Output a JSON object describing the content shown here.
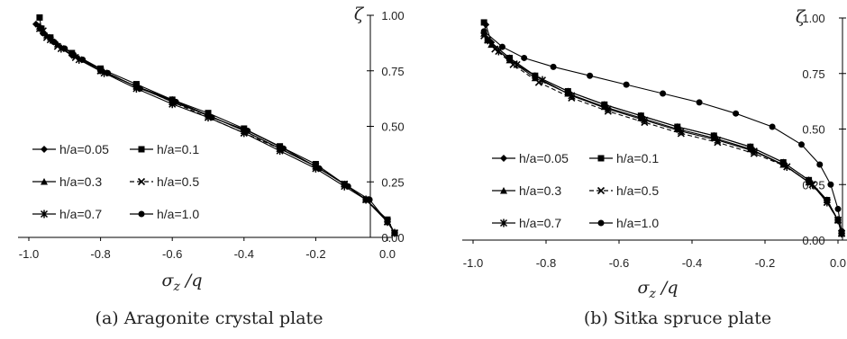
{
  "chart_data": [
    {
      "type": "line",
      "caption": "(a)  Aragonite  crystal  plate",
      "xlabel": "σ_z /q",
      "ylabel": "ζ",
      "xlim": [
        -1.0,
        0.02
      ],
      "ylim": [
        0.0,
        1.0
      ],
      "x_ticks": [
        "-1.0",
        "-0.8",
        "-0.6",
        "-0.4",
        "-0.2",
        "0.0"
      ],
      "y_ticks": [
        "0.00",
        "0.25",
        "0.50",
        "0.75",
        "1.00"
      ],
      "legend": "bottom-left, 2 columns",
      "series": [
        {
          "name": "h/a=0.05",
          "marker": "diamond",
          "x": [
            -0.98,
            -0.96,
            -0.93,
            -0.88,
            -0.8,
            -0.7,
            -0.6,
            -0.5,
            -0.4,
            -0.3,
            -0.2,
            -0.12,
            -0.06,
            0.0,
            0.02
          ],
          "y": [
            0.96,
            0.92,
            0.88,
            0.82,
            0.75,
            0.68,
            0.62,
            0.55,
            0.48,
            0.4,
            0.32,
            0.24,
            0.17,
            0.07,
            0.02
          ]
        },
        {
          "name": "h/a=0.1",
          "marker": "square",
          "x": [
            -0.97,
            -0.965,
            -0.94,
            -0.88,
            -0.8,
            -0.7,
            -0.6,
            -0.5,
            -0.4,
            -0.3,
            -0.2,
            -0.12,
            -0.06,
            0.0,
            0.02
          ],
          "y": [
            0.99,
            0.94,
            0.9,
            0.83,
            0.76,
            0.69,
            0.62,
            0.56,
            0.49,
            0.41,
            0.33,
            0.24,
            0.17,
            0.08,
            0.02
          ]
        },
        {
          "name": "h/a=0.3",
          "marker": "triangle",
          "x": [
            -0.97,
            -0.95,
            -0.92,
            -0.87,
            -0.8,
            -0.7,
            -0.6,
            -0.5,
            -0.4,
            -0.3,
            -0.2,
            -0.12,
            -0.06,
            0.0,
            0.02
          ],
          "y": [
            0.95,
            0.91,
            0.87,
            0.82,
            0.75,
            0.68,
            0.61,
            0.55,
            0.48,
            0.4,
            0.32,
            0.24,
            0.17,
            0.07,
            0.02
          ]
        },
        {
          "name": "h/a=0.5",
          "marker": "x",
          "x": [
            -0.97,
            -0.95,
            -0.92,
            -0.87,
            -0.8,
            -0.7,
            -0.6,
            -0.5,
            -0.4,
            -0.3,
            -0.2,
            -0.12,
            -0.06,
            0.0,
            0.02
          ],
          "y": [
            0.94,
            0.9,
            0.86,
            0.81,
            0.75,
            0.68,
            0.61,
            0.54,
            0.47,
            0.4,
            0.32,
            0.24,
            0.17,
            0.07,
            0.02
          ]
        },
        {
          "name": "h/a=0.7",
          "marker": "star",
          "x": [
            -0.96,
            -0.94,
            -0.91,
            -0.86,
            -0.79,
            -0.7,
            -0.6,
            -0.5,
            -0.4,
            -0.3,
            -0.2,
            -0.12,
            -0.06,
            0.0,
            0.02
          ],
          "y": [
            0.93,
            0.89,
            0.85,
            0.8,
            0.74,
            0.67,
            0.6,
            0.54,
            0.47,
            0.39,
            0.31,
            0.23,
            0.17,
            0.07,
            0.02
          ]
        },
        {
          "name": "h/a=1.0",
          "marker": "circle",
          "x": [
            -0.96,
            -0.93,
            -0.9,
            -0.85,
            -0.78,
            -0.69,
            -0.59,
            -0.49,
            -0.39,
            -0.29,
            -0.19,
            -0.11,
            -0.05,
            0.0,
            0.02
          ],
          "y": [
            0.92,
            0.88,
            0.85,
            0.8,
            0.74,
            0.67,
            0.61,
            0.54,
            0.48,
            0.4,
            0.31,
            0.23,
            0.17,
            0.07,
            0.02
          ]
        }
      ]
    },
    {
      "type": "line",
      "caption": "(b)  Sitka  spruce  plate",
      "xlabel": "σ_z /q",
      "ylabel": "ζ",
      "xlim": [
        -1.0,
        0.02
      ],
      "ylim": [
        0.0,
        1.0
      ],
      "x_ticks": [
        "-1.0",
        "-0.8",
        "-0.6",
        "-0.4",
        "-0.2",
        "0.0"
      ],
      "y_ticks": [
        "0.00",
        "0.25",
        "0.50",
        "0.75",
        "1.00"
      ],
      "legend": "bottom-left, 2 columns",
      "series": [
        {
          "name": "h/a=0.05",
          "marker": "diamond",
          "x": [
            -0.965,
            -0.95,
            -0.9,
            -0.83,
            -0.74,
            -0.64,
            -0.54,
            -0.44,
            -0.34,
            -0.24,
            -0.15,
            -0.08,
            -0.03,
            0.0,
            0.01
          ],
          "y": [
            0.97,
            0.89,
            0.82,
            0.74,
            0.67,
            0.61,
            0.56,
            0.51,
            0.47,
            0.42,
            0.35,
            0.27,
            0.18,
            0.09,
            0.03
          ]
        },
        {
          "name": "h/a=0.1",
          "marker": "square",
          "x": [
            -0.97,
            -0.96,
            -0.9,
            -0.83,
            -0.74,
            -0.64,
            -0.54,
            -0.44,
            -0.34,
            -0.24,
            -0.15,
            -0.08,
            -0.03,
            0.0,
            0.01
          ],
          "y": [
            0.98,
            0.9,
            0.82,
            0.74,
            0.67,
            0.61,
            0.56,
            0.51,
            0.47,
            0.42,
            0.35,
            0.27,
            0.18,
            0.09,
            0.03
          ]
        },
        {
          "name": "h/a=0.3",
          "marker": "triangle",
          "x": [
            -0.97,
            -0.95,
            -0.9,
            -0.83,
            -0.74,
            -0.64,
            -0.54,
            -0.44,
            -0.34,
            -0.24,
            -0.15,
            -0.08,
            -0.03,
            0.0,
            0.01
          ],
          "y": [
            0.93,
            0.88,
            0.81,
            0.73,
            0.66,
            0.6,
            0.55,
            0.5,
            0.46,
            0.41,
            0.34,
            0.26,
            0.18,
            0.09,
            0.03
          ]
        },
        {
          "name": "h/a=0.5",
          "marker": "x",
          "x": [
            -0.97,
            -0.94,
            -0.89,
            -0.82,
            -0.73,
            -0.63,
            -0.53,
            -0.43,
            -0.33,
            -0.23,
            -0.14,
            -0.07,
            -0.03,
            0.0,
            0.01
          ],
          "y": [
            0.92,
            0.86,
            0.79,
            0.71,
            0.64,
            0.58,
            0.53,
            0.48,
            0.44,
            0.39,
            0.33,
            0.25,
            0.17,
            0.09,
            0.03
          ]
        },
        {
          "name": "h/a=0.7",
          "marker": "star",
          "x": [
            -0.96,
            -0.93,
            -0.88,
            -0.81,
            -0.73,
            -0.63,
            -0.53,
            -0.43,
            -0.33,
            -0.23,
            -0.14,
            -0.07,
            -0.03,
            0.0,
            0.01
          ],
          "y": [
            0.9,
            0.85,
            0.79,
            0.72,
            0.65,
            0.59,
            0.54,
            0.49,
            0.45,
            0.4,
            0.33,
            0.25,
            0.17,
            0.09,
            0.03
          ]
        },
        {
          "name": "h/a=1.0",
          "marker": "circle",
          "x": [
            -0.97,
            -0.92,
            -0.86,
            -0.78,
            -0.68,
            -0.58,
            -0.48,
            -0.38,
            -0.28,
            -0.18,
            -0.1,
            -0.05,
            -0.02,
            0.0,
            0.01
          ],
          "y": [
            0.94,
            0.87,
            0.82,
            0.78,
            0.74,
            0.7,
            0.66,
            0.62,
            0.57,
            0.51,
            0.43,
            0.34,
            0.25,
            0.14,
            0.04
          ]
        }
      ]
    }
  ]
}
